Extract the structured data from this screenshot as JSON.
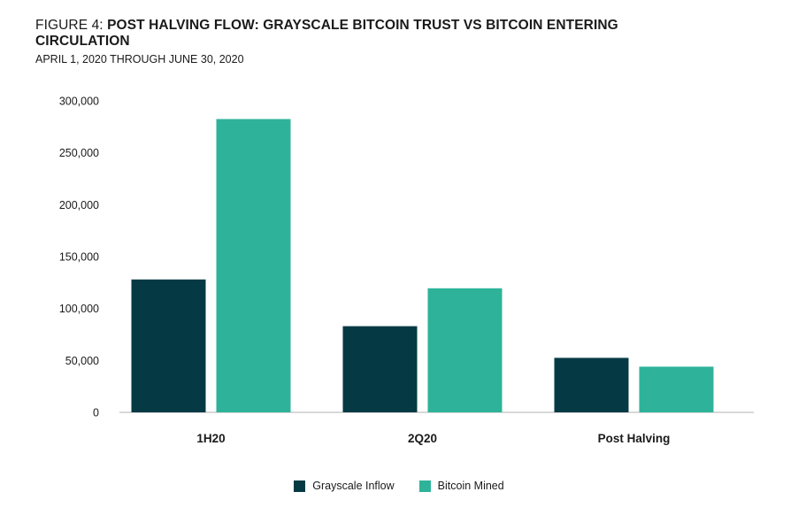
{
  "title_prefix": "FIGURE 4: ",
  "title": "POST HALVING FLOW: GRAYSCALE BITCOIN TRUST VS BITCOIN ENTERING CIRCULATION",
  "subtitle": "APRIL 1, 2020 THROUGH JUNE 30, 2020",
  "colors": {
    "inflow": "#053a45",
    "mined": "#2eb39a",
    "axis": "#cccccc"
  },
  "chart_data": {
    "type": "bar",
    "categories": [
      "1H20",
      "2Q20",
      "Post Halving"
    ],
    "series": [
      {
        "name": "Grayscale Inflow",
        "values": [
          128000,
          83000,
          52500
        ]
      },
      {
        "name": "Bitcoin Mined",
        "values": [
          282500,
          119500,
          44000
        ]
      }
    ],
    "ylim": [
      0,
      300000
    ],
    "yticks": [
      0,
      50000,
      100000,
      150000,
      200000,
      250000,
      300000
    ],
    "ytick_labels": [
      "0",
      "50,000",
      "100,000",
      "150,000",
      "200,000",
      "250,000",
      "300,000"
    ],
    "grid": false,
    "legend": "bottom"
  }
}
